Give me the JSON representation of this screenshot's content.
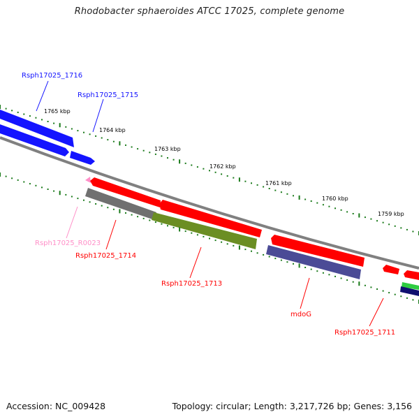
{
  "title": "Rhodobacter sphaeroides ATCC 17025, complete genome",
  "footer": {
    "accession": "Accession: NC_009428",
    "topology": "Topology: circular; Length: 3,217,726 bp; Genes: 3,156"
  },
  "colors": {
    "background": "#ffffff",
    "backbone": "#808080",
    "tick": "#1a7a1a",
    "blue_gene": "#1414ff",
    "red_gene": "#ff0000",
    "gray_gene": "#707070",
    "olive_gene": "#6b8e23",
    "purple_gene": "#4b4b96",
    "pink_gene": "#ff8fc8",
    "green_gene": "#2ecc40",
    "navy_gene": "#101070"
  },
  "ticks": {
    "outer": [
      "1765 kbp",
      "1764 kbp",
      "1763 kbp",
      "1762 kbp",
      "1761 kbp",
      "1760 kbp",
      "1759 kbp"
    ]
  },
  "genes": [
    {
      "id": "Rsph17025_1716",
      "label": "Rsph17025_1716",
      "color": "#1414ff"
    },
    {
      "id": "Rsph17025_1715",
      "label": "Rsph17025_1715",
      "color": "#1414ff"
    },
    {
      "id": "Rsph17025_R0023",
      "label": "Rsph17025_R0023",
      "color": "#ff8fc8"
    },
    {
      "id": "Rsph17025_1714",
      "label": "Rsph17025_1714",
      "color": "#ff0000"
    },
    {
      "id": "Rsph17025_1713",
      "label": "Rsph17025_1713",
      "color": "#ff0000"
    },
    {
      "id": "mdoG",
      "label": "mdoG",
      "color": "#ff0000"
    },
    {
      "id": "Rsph17025_1711",
      "label": "Rsph17025_1711",
      "color": "#ff0000"
    }
  ]
}
